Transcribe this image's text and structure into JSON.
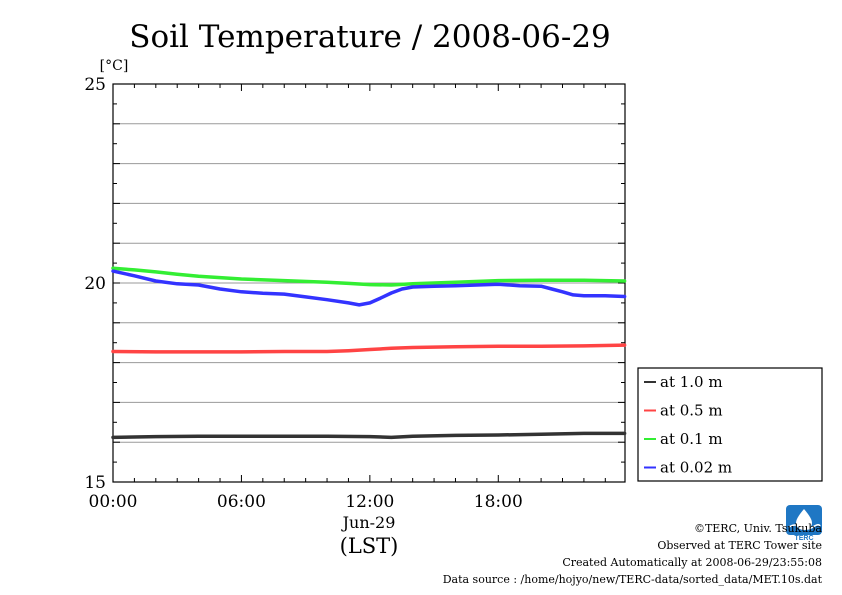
{
  "chart_data": {
    "type": "line",
    "title": "Soil Temperature / 2008-06-29",
    "ylabel": "[°C]",
    "xlabel": "(LST)",
    "x_date_label": "Jun-29",
    "ylim": [
      15,
      25
    ],
    "y_ticks": [
      "15",
      "20",
      "25"
    ],
    "y_tick_values": [
      15,
      20,
      25
    ],
    "x_ticks": [
      "00:00",
      "06:00",
      "12:00",
      "18:00"
    ],
    "x_tick_hours": [
      0,
      6,
      12,
      18
    ],
    "xlim_hours": [
      0,
      23.92
    ],
    "grid": true,
    "legend_position": "right",
    "series": [
      {
        "name": "at 1.0 m",
        "color": "#333333",
        "x": [
          0,
          2,
          4,
          6,
          8,
          10,
          12,
          13,
          14,
          16,
          18,
          20,
          22,
          23.9
        ],
        "values": [
          16.12,
          16.14,
          16.15,
          16.15,
          16.15,
          16.15,
          16.14,
          16.12,
          16.15,
          16.17,
          16.18,
          16.2,
          16.22,
          16.22
        ]
      },
      {
        "name": "at 0.5 m",
        "color": "#ff4444",
        "x": [
          0,
          2,
          4,
          6,
          8,
          10,
          11,
          12,
          13,
          14,
          16,
          18,
          20,
          22,
          23.9
        ],
        "values": [
          18.28,
          18.27,
          18.27,
          18.27,
          18.28,
          18.28,
          18.3,
          18.33,
          18.36,
          18.38,
          18.4,
          18.41,
          18.41,
          18.42,
          18.44
        ]
      },
      {
        "name": "at 0.1 m",
        "color": "#33ee33",
        "x": [
          0,
          1,
          2,
          3,
          4,
          6,
          8,
          10,
          11,
          12,
          13,
          14,
          16,
          18,
          20,
          22,
          23.9
        ],
        "values": [
          20.37,
          20.33,
          20.28,
          20.22,
          20.17,
          20.1,
          20.06,
          20.02,
          19.99,
          19.96,
          19.95,
          19.98,
          20.02,
          20.06,
          20.07,
          20.07,
          20.05
        ]
      },
      {
        "name": "at 0.02 m",
        "color": "#3333ff",
        "x": [
          0,
          1,
          2,
          3,
          4,
          5,
          6,
          7,
          8,
          9,
          10,
          11,
          11.5,
          12,
          12.5,
          13,
          13.5,
          14,
          15,
          16,
          17,
          18,
          19,
          20,
          20.5,
          21,
          21.5,
          22,
          23,
          23.9
        ],
        "values": [
          20.3,
          20.18,
          20.05,
          19.98,
          19.95,
          19.85,
          19.78,
          19.74,
          19.72,
          19.65,
          19.58,
          19.5,
          19.45,
          19.5,
          19.62,
          19.75,
          19.85,
          19.9,
          19.92,
          19.93,
          19.95,
          19.97,
          19.93,
          19.92,
          19.85,
          19.78,
          19.7,
          19.68,
          19.68,
          19.66
        ]
      }
    ]
  },
  "footer": {
    "copyright": "©TERC, Univ. Tsukuba",
    "site": "Observed at TERC Tower site",
    "created": "Created Automatically at 2008-06-29/23:55:08",
    "source": "Data source : /home/hojyo/new/TERC-data/sorted_data/MET.10s.dat",
    "logo_text": "TERC",
    "logo_color": "#1f77c4"
  }
}
